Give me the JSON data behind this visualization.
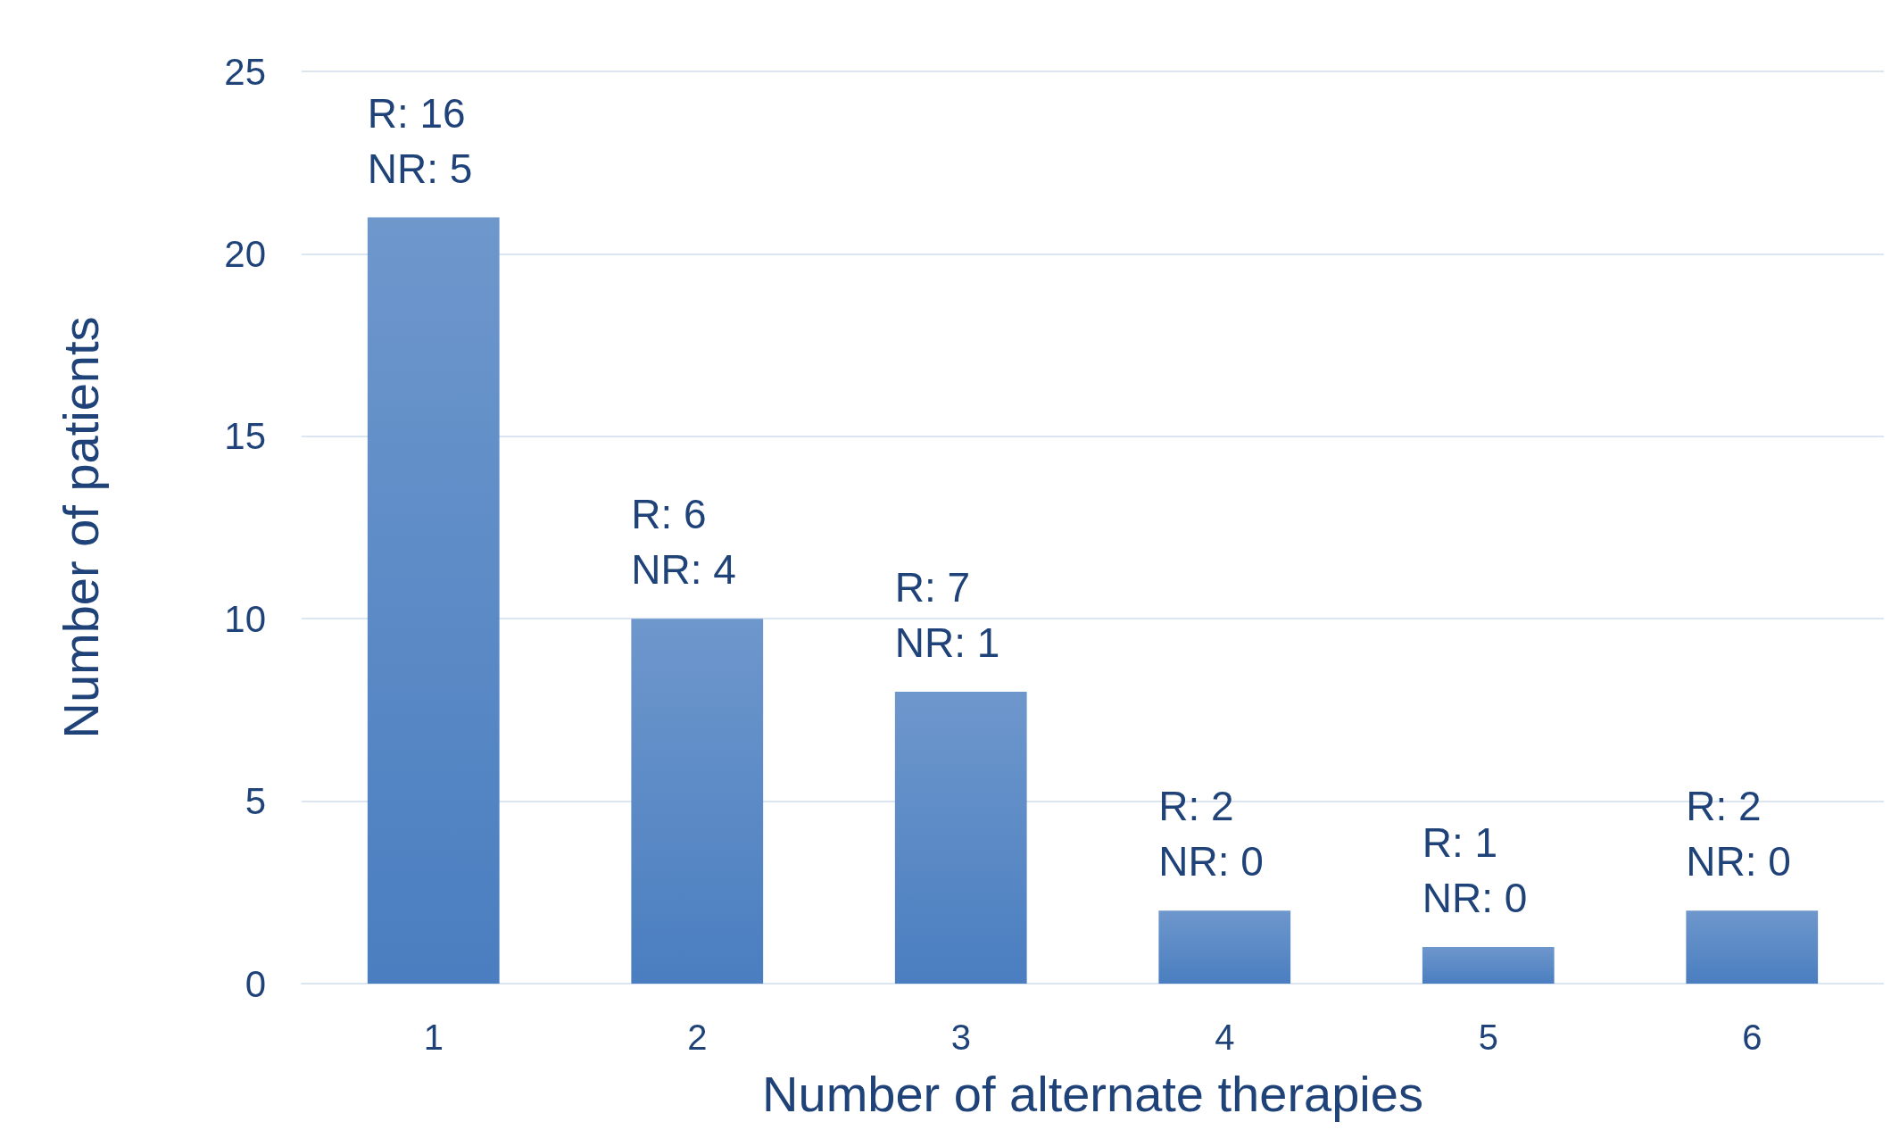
{
  "chart_data": {
    "type": "bar",
    "xlabel": "Number of alternate therapies",
    "ylabel": "Number of patients",
    "categories": [
      "1",
      "2",
      "3",
      "4",
      "5",
      "6"
    ],
    "values": [
      21,
      10,
      8,
      2,
      1,
      2
    ],
    "value_labels": [
      "R: 16\nNR: 5",
      "R: 6\nNR: 4",
      "R: 7\nNR: 1",
      "R: 2\nNR: 0",
      "R: 1\nNR: 0",
      "R: 2\nNR: 0"
    ],
    "color": "#4a7ec0",
    "ylim": [
      0,
      25
    ],
    "yticks": [
      0,
      5,
      10,
      15,
      20,
      25
    ],
    "grid": "y"
  }
}
